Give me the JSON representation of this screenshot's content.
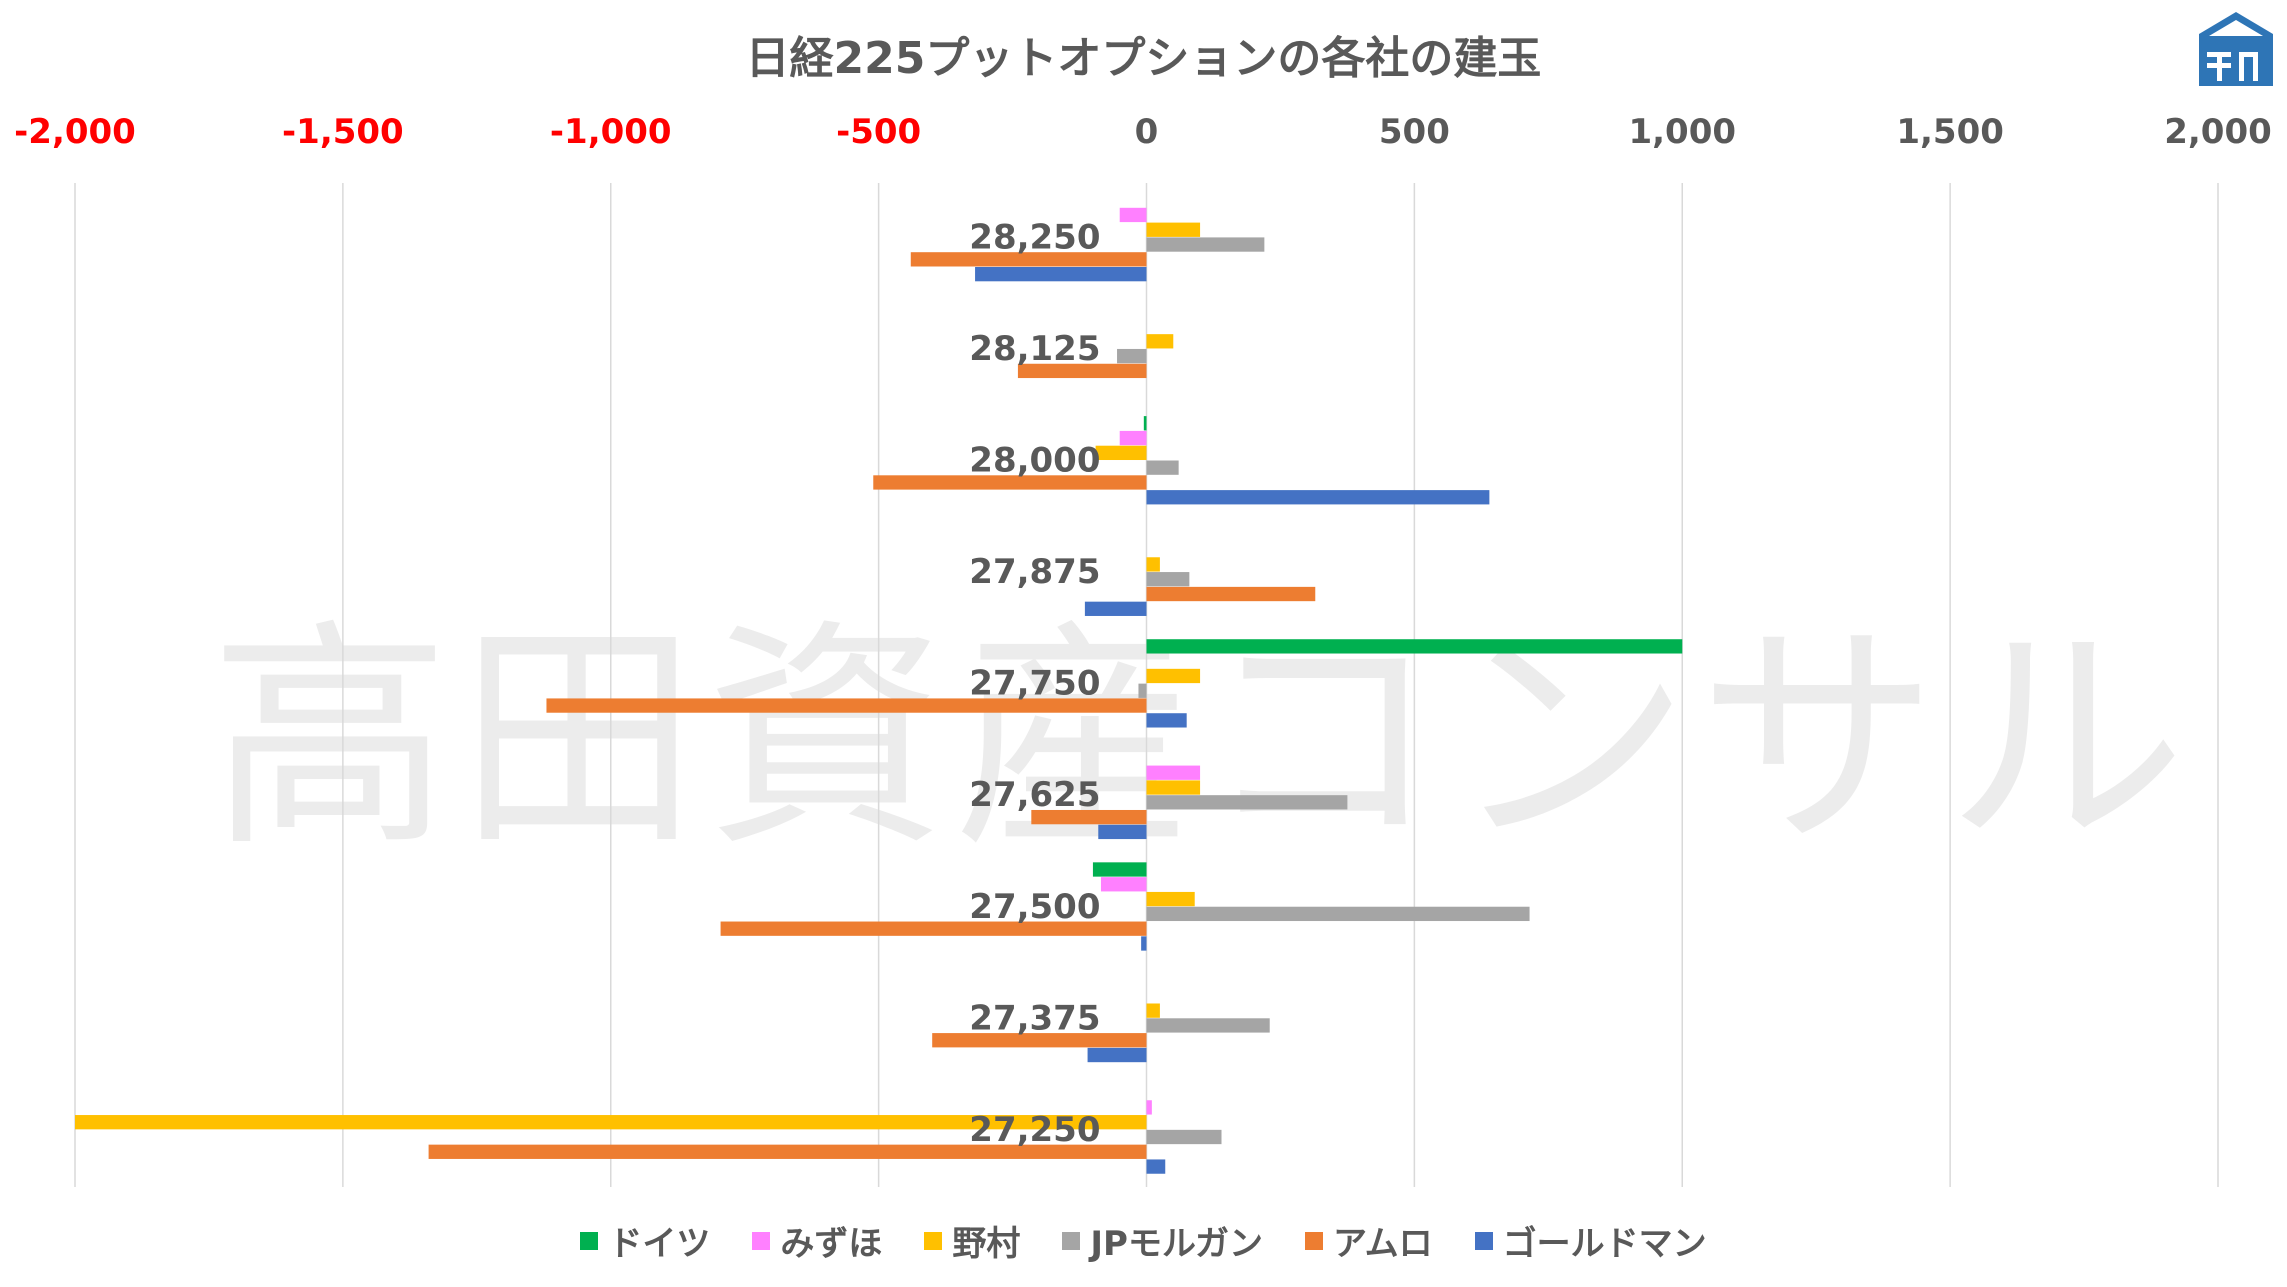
{
  "chart_data": {
    "type": "bar",
    "orientation": "horizontal",
    "title": "日経225プットオプションの各社の建玉",
    "watermark": "高田資産コンサル",
    "xlim": [
      -2000,
      2000
    ],
    "x_ticks": [
      -2000,
      -1500,
      -1000,
      -500,
      0,
      500,
      1000,
      1500,
      2000
    ],
    "x_tick_labels": [
      "-2,000",
      "-1,500",
      "-1,000",
      "-500",
      "0",
      "500",
      "1,000",
      "1,500",
      "2,000"
    ],
    "negative_tick_color": "#FF0000",
    "positive_tick_color": "#595959",
    "grid": true,
    "legend_position": "bottom",
    "categories": [
      "28,250",
      "28,125",
      "28,000",
      "27,875",
      "27,750",
      "27,625",
      "27,500",
      "27,375",
      "27,250"
    ],
    "series": [
      {
        "name": "ドイツ",
        "color": "#00B050",
        "values": [
          0,
          0,
          -5,
          0,
          1000,
          0,
          -100,
          0,
          0
        ]
      },
      {
        "name": "みずほ",
        "color": "#FF80FF",
        "values": [
          -50,
          0,
          -50,
          0,
          0,
          100,
          -85,
          0,
          10
        ]
      },
      {
        "name": "野村",
        "color": "#FFC000",
        "values": [
          100,
          50,
          -95,
          25,
          100,
          100,
          90,
          25,
          -2000
        ]
      },
      {
        "name": "JPモルガン",
        "color": "#A5A5A5",
        "values": [
          220,
          -55,
          60,
          80,
          -15,
          375,
          715,
          230,
          140
        ]
      },
      {
        "name": "アムロ",
        "color": "#ED7D31",
        "values": [
          -440,
          -240,
          -510,
          315,
          -1120,
          -215,
          -795,
          -400,
          -1340
        ]
      },
      {
        "name": "ゴールドマン",
        "color": "#4472C4",
        "values": [
          -320,
          0,
          640,
          -115,
          75,
          -90,
          -10,
          -110,
          35
        ]
      }
    ]
  },
  "logo": {
    "icon": "building-logo-icon",
    "color": "#2E75B6"
  }
}
